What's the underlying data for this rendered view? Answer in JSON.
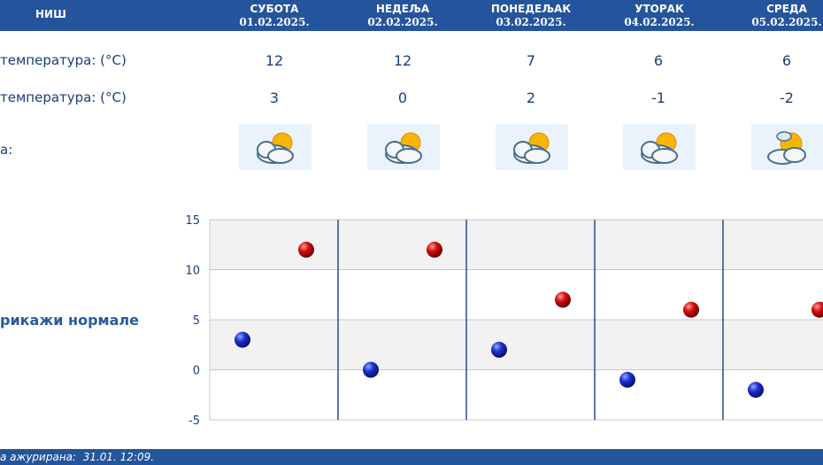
{
  "header": {
    "city": "НИШ",
    "days": [
      {
        "name": "СУБОТА",
        "date": "01.02.2025."
      },
      {
        "name": "НЕДЕЉА",
        "date": "02.02.2025."
      },
      {
        "name": "ПОНЕДЕЉАК",
        "date": "03.02.2025."
      },
      {
        "name": "УТОРАК",
        "date": "04.02.2025."
      },
      {
        "name": "СРЕДА",
        "date": "05.02.2025."
      }
    ]
  },
  "rows": {
    "max_label": "температура: (°C)",
    "min_label": "температура: (°C)",
    "weather_label": "а:"
  },
  "forecast": {
    "max": [
      "12",
      "12",
      "7",
      "6",
      "6"
    ],
    "min": [
      "3",
      "0",
      "2",
      "-1",
      "-2"
    ],
    "icons": [
      "partly-cloudy-icon",
      "partly-cloudy-icon",
      "partly-cloudy-icon",
      "partly-cloudy-icon",
      "sun-behind-cloud-icon"
    ]
  },
  "normals_link": "рикажи нормале",
  "chart_data": {
    "type": "scatter",
    "ylim": [
      -5,
      15
    ],
    "yticks": [
      "15",
      "10",
      "5",
      "0",
      "-5"
    ],
    "series": [
      {
        "values": [
          3,
          0,
          2,
          -1,
          -2
        ],
        "color": "#1111cc"
      },
      {
        "values": [
          12,
          12,
          7,
          6,
          6
        ],
        "color": "#cc0000"
      }
    ]
  },
  "footer": {
    "updated": "а ажурирана:  31.01. 12:09."
  }
}
